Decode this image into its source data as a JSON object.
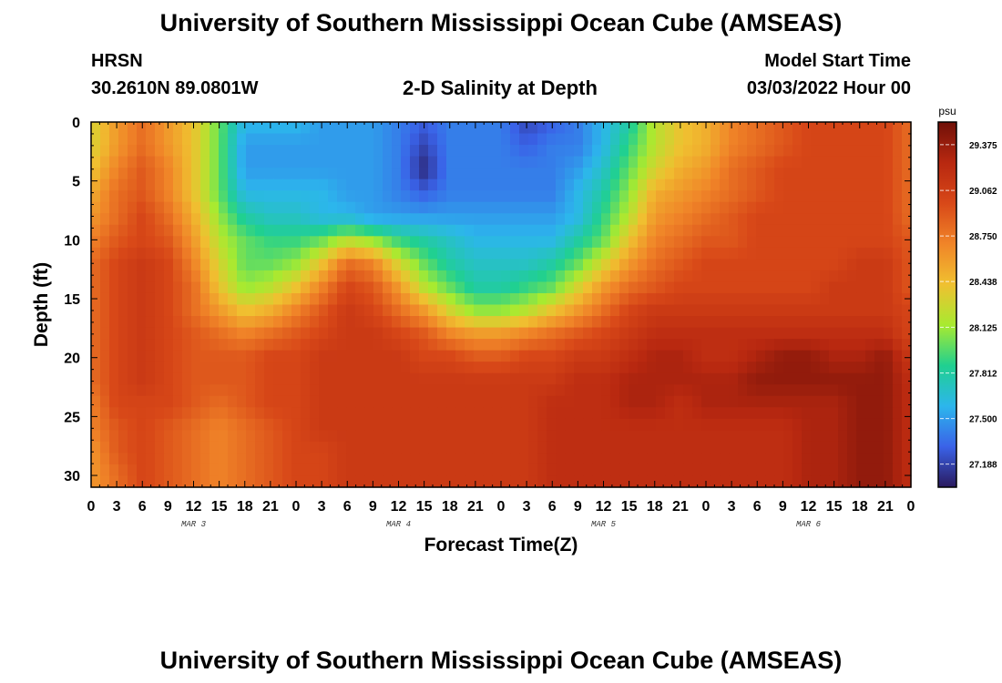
{
  "header": {
    "title": "University of Southern Mississippi Ocean Cube (AMSEAS)",
    "station": "HRSN",
    "coords": "30.2610N  89.0801W",
    "plot_title": "2-D Salinity at Depth",
    "model_start_label": "Model Start Time",
    "model_start_value": "03/03/2022 Hour 00"
  },
  "footer": {
    "title": "University of Southern Mississippi Ocean Cube (AMSEAS)"
  },
  "chart_data": {
    "type": "heatmap",
    "title": "2-D Salinity at Depth",
    "xlabel": "Forecast Time(Z)",
    "ylabel": "Depth (ft)",
    "x_tick_labels": [
      "0",
      "3",
      "6",
      "9",
      "12",
      "15",
      "18",
      "21",
      "0",
      "3",
      "6",
      "9",
      "12",
      "15",
      "18",
      "21",
      "0",
      "3",
      "6",
      "9",
      "12",
      "15",
      "18",
      "21",
      "0",
      "3",
      "6",
      "9",
      "12",
      "15",
      "18",
      "21",
      "0"
    ],
    "day_labels": [
      "MAR 3",
      "MAR 4",
      "MAR 5",
      "MAR 6"
    ],
    "x_range_hours": [
      0,
      96
    ],
    "y_range_ft": [
      0,
      31
    ],
    "y_ticks": [
      0,
      5,
      10,
      15,
      20,
      25,
      30
    ],
    "y_inverted": true,
    "colorbar": {
      "unit": "psu",
      "min": 27.03,
      "max": 29.53,
      "tick_values": [
        29.375,
        29.062,
        28.75,
        28.438,
        28.125,
        27.812,
        27.5,
        27.188
      ],
      "tick_labels": [
        "29.375",
        "29.062",
        "28.750",
        "28.438",
        "28.125",
        "27.812",
        "27.500",
        "27.188"
      ],
      "colors": [
        "#2a1a5e",
        "#3a62e8",
        "#2cb6ec",
        "#20d090",
        "#a8ea30",
        "#f0c030",
        "#f08428",
        "#d84818",
        "#b82810",
        "#701008"
      ]
    },
    "depth_levels_ft": [
      0,
      2,
      4,
      6,
      8,
      10,
      12,
      14,
      16,
      18,
      20,
      22,
      24,
      26,
      28,
      30
    ],
    "time_nodes_hours": [
      0,
      3,
      6,
      9,
      12,
      15,
      18,
      21,
      24,
      27,
      30,
      33,
      36,
      39,
      42,
      45,
      48,
      51,
      54,
      57,
      60,
      63,
      66,
      69,
      72,
      75,
      78,
      81,
      84,
      87,
      90,
      93,
      96
    ],
    "salinity_psu": [
      [
        28.3,
        28.6,
        28.8,
        28.6,
        28.4,
        28.0,
        27.6,
        27.6,
        27.6,
        27.5,
        27.5,
        27.5,
        27.4,
        27.3,
        27.4,
        27.4,
        27.4,
        27.2,
        27.3,
        27.4,
        27.6,
        27.8,
        28.2,
        28.4,
        28.5,
        28.7,
        28.8,
        28.9,
        29.0,
        29.0,
        29.0,
        29.0,
        28.8
      ],
      [
        28.3,
        28.6,
        28.8,
        28.6,
        28.4,
        28.0,
        27.5,
        27.5,
        27.5,
        27.5,
        27.5,
        27.5,
        27.4,
        27.2,
        27.4,
        27.4,
        27.4,
        27.3,
        27.4,
        27.4,
        27.6,
        27.9,
        28.2,
        28.4,
        28.5,
        28.7,
        28.8,
        28.9,
        29.0,
        29.0,
        29.0,
        29.0,
        28.8
      ],
      [
        28.4,
        28.7,
        28.9,
        28.7,
        28.4,
        28.0,
        27.5,
        27.5,
        27.5,
        27.5,
        27.5,
        27.5,
        27.4,
        27.1,
        27.4,
        27.4,
        27.4,
        27.4,
        27.4,
        27.5,
        27.7,
        28.0,
        28.3,
        28.5,
        28.6,
        28.8,
        28.9,
        29.0,
        29.0,
        29.0,
        29.0,
        29.0,
        28.8
      ],
      [
        28.5,
        28.8,
        28.9,
        28.7,
        28.4,
        28.0,
        27.6,
        27.6,
        27.6,
        27.6,
        27.5,
        27.5,
        27.4,
        27.3,
        27.4,
        27.4,
        27.4,
        27.4,
        27.4,
        27.6,
        27.8,
        28.1,
        28.5,
        28.6,
        28.7,
        28.8,
        28.9,
        29.0,
        29.0,
        29.0,
        29.0,
        29.0,
        28.8
      ],
      [
        28.6,
        28.8,
        29.0,
        28.8,
        28.5,
        28.1,
        27.8,
        27.7,
        27.7,
        27.6,
        27.6,
        27.5,
        27.5,
        27.5,
        27.5,
        27.5,
        27.5,
        27.5,
        27.5,
        27.6,
        27.9,
        28.2,
        28.6,
        28.7,
        28.8,
        28.9,
        29.0,
        29.0,
        29.0,
        29.0,
        29.0,
        29.0,
        28.8
      ],
      [
        28.7,
        28.9,
        29.0,
        28.9,
        28.6,
        28.2,
        28.0,
        27.9,
        27.9,
        28.0,
        28.2,
        28.1,
        27.9,
        27.8,
        27.7,
        27.6,
        27.6,
        27.6,
        27.6,
        27.8,
        28.0,
        28.4,
        28.7,
        28.8,
        28.9,
        28.9,
        29.0,
        29.0,
        29.0,
        29.0,
        29.0,
        29.0,
        28.9
      ],
      [
        28.8,
        29.0,
        29.1,
        29.0,
        28.7,
        28.3,
        28.0,
        28.0,
        28.1,
        28.4,
        28.8,
        28.7,
        28.3,
        28.0,
        27.8,
        27.7,
        27.7,
        27.7,
        27.8,
        28.0,
        28.3,
        28.6,
        28.8,
        28.9,
        29.0,
        29.0,
        29.0,
        29.0,
        29.0,
        29.0,
        29.1,
        29.1,
        28.9
      ],
      [
        28.8,
        29.0,
        29.1,
        29.0,
        28.8,
        28.4,
        28.1,
        28.2,
        28.4,
        28.7,
        29.0,
        28.9,
        28.6,
        28.2,
        28.0,
        27.8,
        27.8,
        27.9,
        28.0,
        28.3,
        28.6,
        28.8,
        28.9,
        29.0,
        29.0,
        29.0,
        29.0,
        29.0,
        29.0,
        29.1,
        29.1,
        29.1,
        28.9
      ],
      [
        28.8,
        29.0,
        29.1,
        29.0,
        28.8,
        28.6,
        28.4,
        28.5,
        28.7,
        28.9,
        29.1,
        29.0,
        28.8,
        28.6,
        28.3,
        28.1,
        28.1,
        28.2,
        28.4,
        28.6,
        28.8,
        29.0,
        29.1,
        29.1,
        29.1,
        29.1,
        29.1,
        29.1,
        29.1,
        29.1,
        29.1,
        29.1,
        29.0
      ],
      [
        28.8,
        29.0,
        29.1,
        29.0,
        28.9,
        28.8,
        28.7,
        28.8,
        28.9,
        29.0,
        29.1,
        29.1,
        29.0,
        28.9,
        28.7,
        28.6,
        28.6,
        28.7,
        28.8,
        28.9,
        29.0,
        29.1,
        29.2,
        29.2,
        29.2,
        29.2,
        29.2,
        29.2,
        29.2,
        29.2,
        29.2,
        29.2,
        29.0
      ],
      [
        28.8,
        29.0,
        29.1,
        29.0,
        28.9,
        28.9,
        28.9,
        29.0,
        29.0,
        29.1,
        29.1,
        29.1,
        29.1,
        29.0,
        29.0,
        28.9,
        28.9,
        29.0,
        29.0,
        29.1,
        29.1,
        29.2,
        29.3,
        29.3,
        29.2,
        29.2,
        29.3,
        29.4,
        29.4,
        29.3,
        29.3,
        29.4,
        29.1
      ],
      [
        28.8,
        29.0,
        29.1,
        29.0,
        28.9,
        28.9,
        28.9,
        29.0,
        29.0,
        29.1,
        29.1,
        29.1,
        29.1,
        29.1,
        29.1,
        29.1,
        29.1,
        29.1,
        29.1,
        29.2,
        29.2,
        29.3,
        29.3,
        29.3,
        29.3,
        29.3,
        29.4,
        29.4,
        29.4,
        29.4,
        29.4,
        29.4,
        29.2
      ],
      [
        28.7,
        29.0,
        29.0,
        29.0,
        28.9,
        28.8,
        28.9,
        29.0,
        29.0,
        29.1,
        29.1,
        29.1,
        29.1,
        29.1,
        29.1,
        29.1,
        29.1,
        29.1,
        29.2,
        29.2,
        29.2,
        29.3,
        29.3,
        29.2,
        29.3,
        29.3,
        29.3,
        29.3,
        29.3,
        29.3,
        29.4,
        29.4,
        29.2
      ],
      [
        28.7,
        28.9,
        29.0,
        28.9,
        28.8,
        28.7,
        28.8,
        28.9,
        29.0,
        29.1,
        29.1,
        29.1,
        29.1,
        29.1,
        29.1,
        29.1,
        29.1,
        29.1,
        29.2,
        29.2,
        29.2,
        29.2,
        29.2,
        29.2,
        29.2,
        29.2,
        29.2,
        29.2,
        29.3,
        29.3,
        29.4,
        29.4,
        29.2
      ],
      [
        28.6,
        28.9,
        29.0,
        28.9,
        28.8,
        28.7,
        28.8,
        28.9,
        29.0,
        29.0,
        29.1,
        29.1,
        29.1,
        29.1,
        29.1,
        29.1,
        29.1,
        29.1,
        29.2,
        29.2,
        29.2,
        29.2,
        29.2,
        29.2,
        29.2,
        29.2,
        29.2,
        29.2,
        29.3,
        29.3,
        29.4,
        29.4,
        29.2
      ],
      [
        28.6,
        28.8,
        29.0,
        28.9,
        28.8,
        28.7,
        28.8,
        28.9,
        29.0,
        29.0,
        29.1,
        29.1,
        29.1,
        29.1,
        29.1,
        29.1,
        29.1,
        29.1,
        29.2,
        29.2,
        29.2,
        29.2,
        29.2,
        29.2,
        29.2,
        29.2,
        29.2,
        29.2,
        29.3,
        29.3,
        29.4,
        29.4,
        29.2
      ]
    ]
  }
}
